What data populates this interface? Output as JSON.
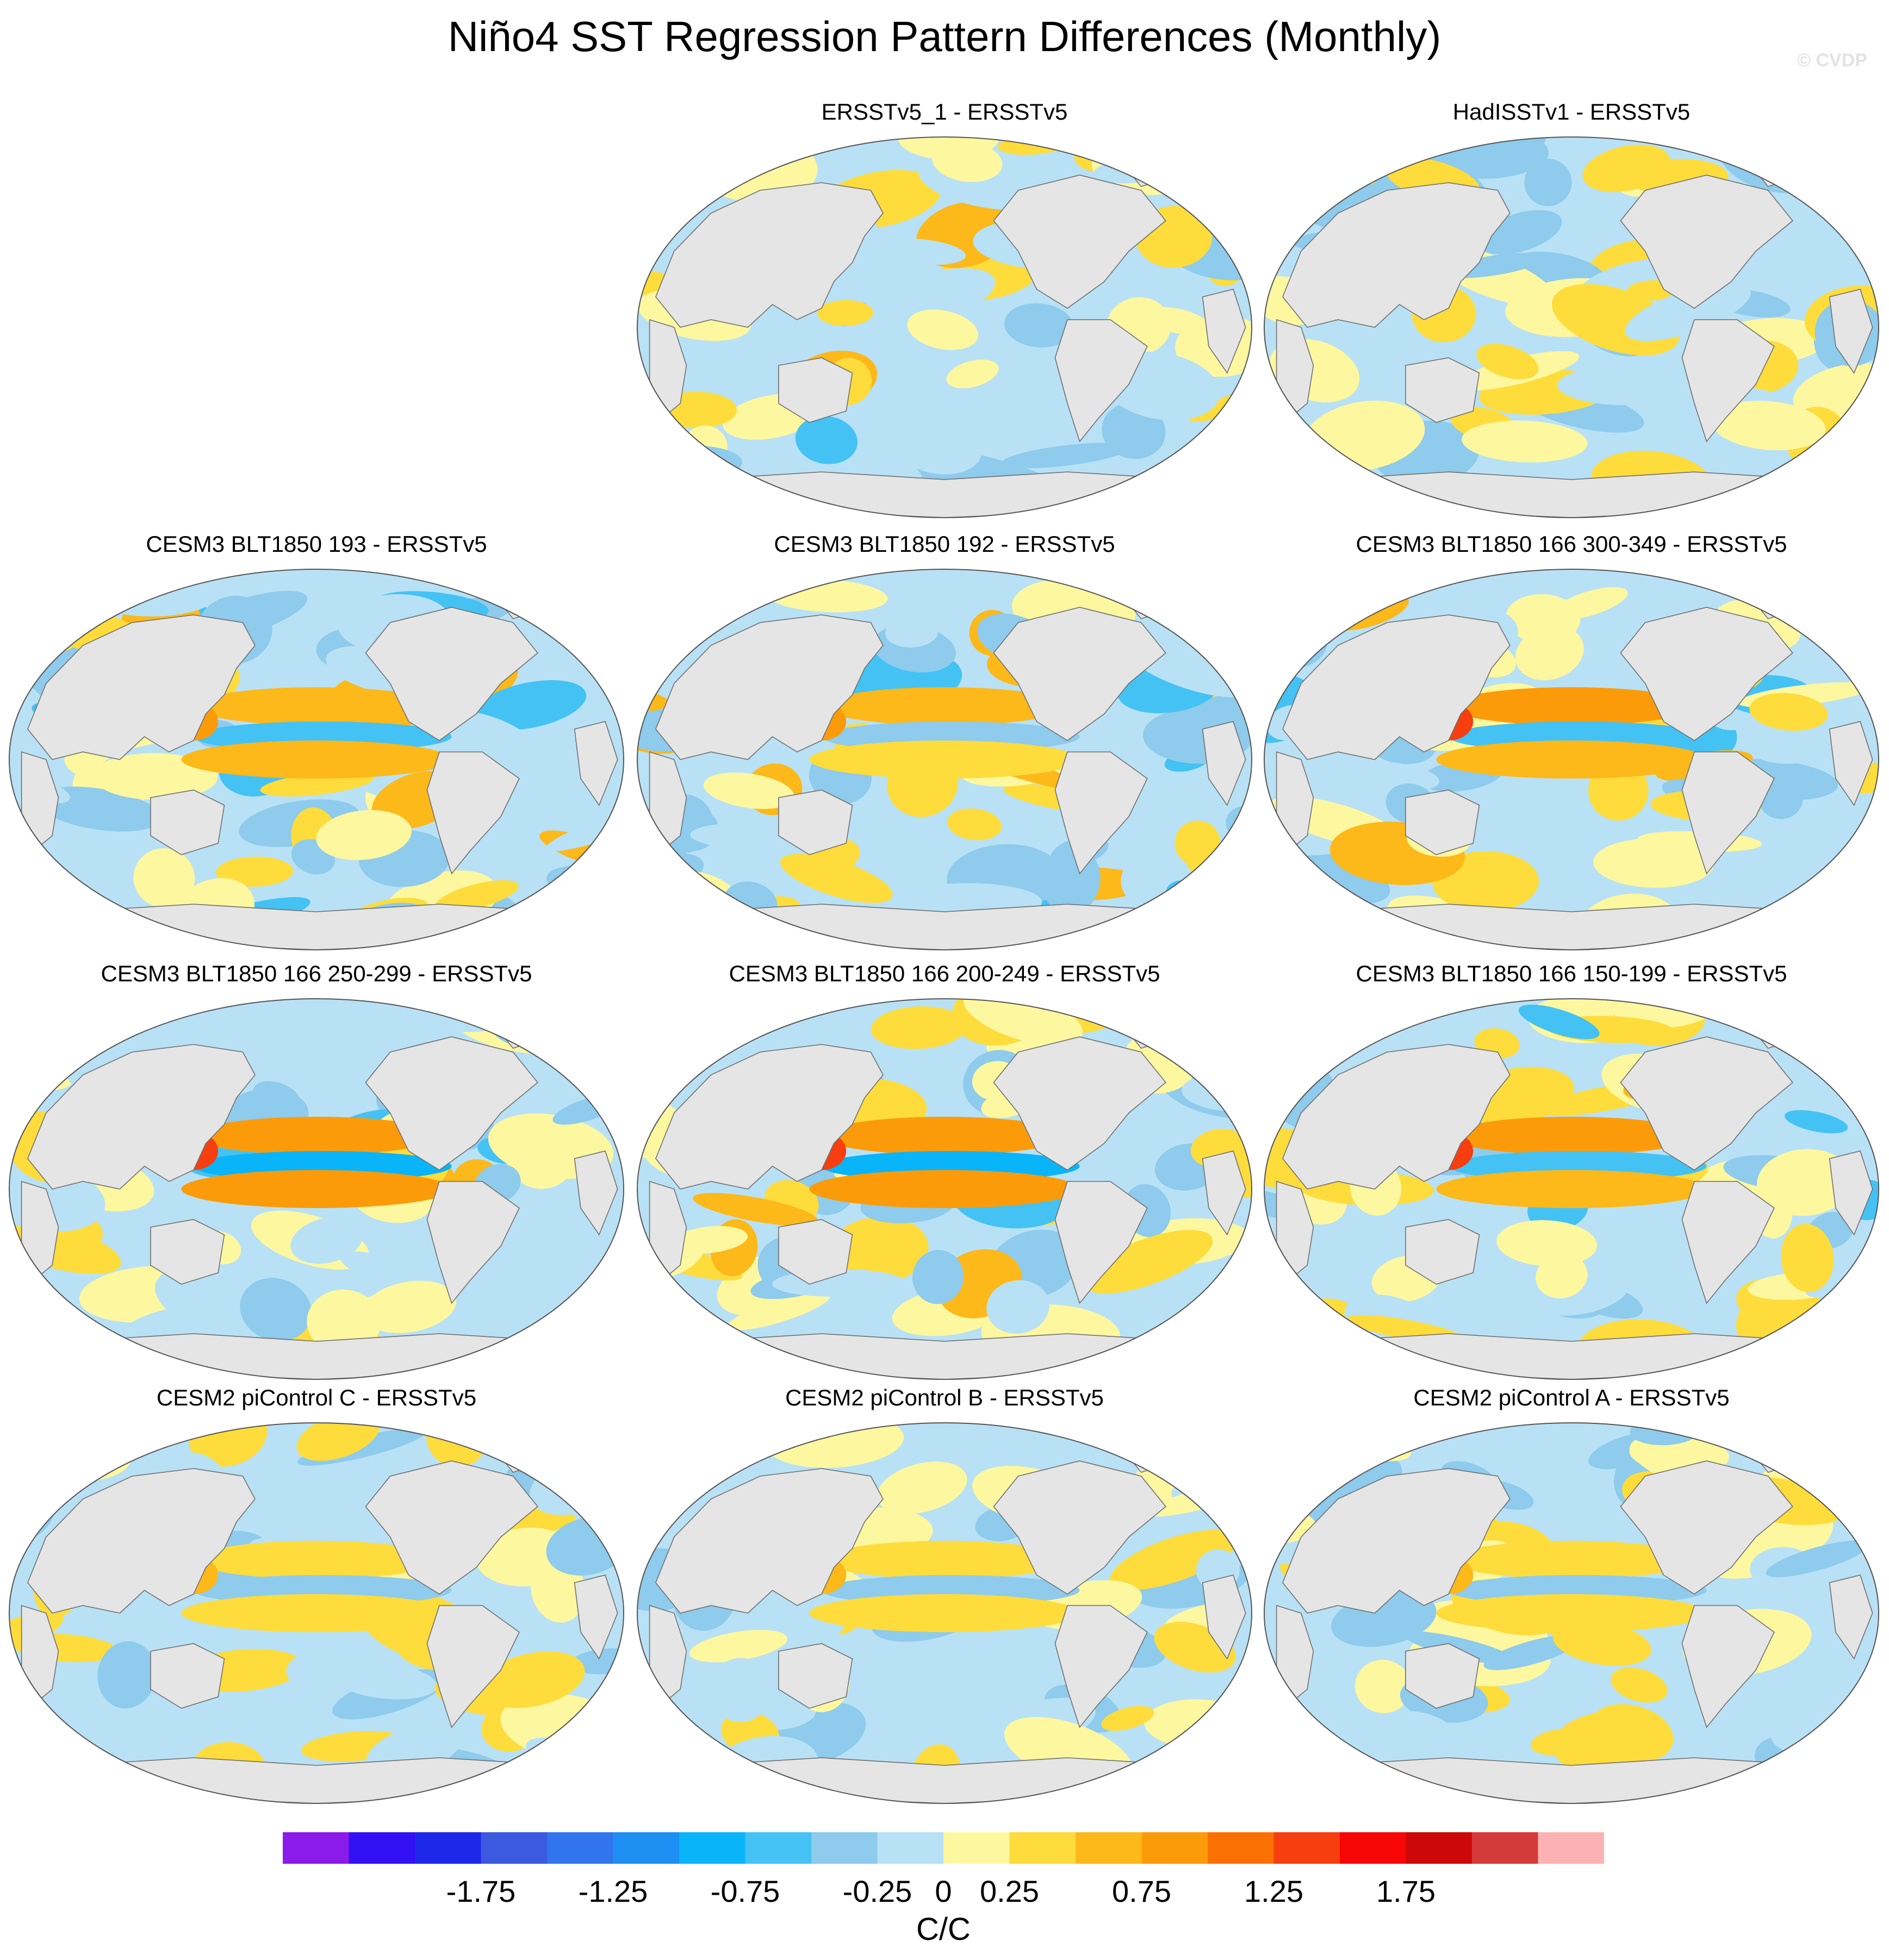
{
  "title": "Niño4 SST Regression Pattern Differences (Monthly)",
  "watermark": "© CVDP",
  "chart_data": {
    "type": "heatmap",
    "projection": "Robinson (global map)",
    "description_units": "C/C",
    "panels": [
      {
        "id": "p1",
        "title": "ERSSTv5_1 - ERSSTv5",
        "signal": 0.0,
        "noise": 0.55,
        "seed": 11
      },
      {
        "id": "p2",
        "title": "HadISSTv1 - ERSSTv5",
        "signal": -0.1,
        "noise": 0.5,
        "seed": 23
      },
      {
        "id": "p3",
        "title": "CESM3 BLT1850 193 - ERSSTv5",
        "signal": 0.9,
        "noise": 0.6,
        "seed": 37
      },
      {
        "id": "p4",
        "title": "CESM3 BLT1850 192 - ERSSTv5",
        "signal": 0.8,
        "noise": 0.6,
        "seed": 41
      },
      {
        "id": "p5",
        "title": "CESM3 BLT1850 166 300-349 - ERSSTv5",
        "signal": 1.2,
        "noise": 0.6,
        "seed": 53
      },
      {
        "id": "p6",
        "title": "CESM3 BLT1850 166 250-299 - ERSSTv5",
        "signal": 1.3,
        "noise": 0.6,
        "seed": 67
      },
      {
        "id": "p7",
        "title": "CESM3 BLT1850 166 200-249 - ERSSTv5",
        "signal": 1.3,
        "noise": 0.6,
        "seed": 71
      },
      {
        "id": "p8",
        "title": "CESM3 BLT1850 166 150-199 - ERSSTv5",
        "signal": 1.2,
        "noise": 0.6,
        "seed": 83
      },
      {
        "id": "p9",
        "title": "CESM2 piControl C - ERSSTv5",
        "signal": 0.6,
        "noise": 0.5,
        "seed": 97
      },
      {
        "id": "p10",
        "title": "CESM2 piControl B - ERSSTv5",
        "signal": 0.6,
        "noise": 0.5,
        "seed": 101
      },
      {
        "id": "p11",
        "title": "CESM2 piControl A - ERSSTv5",
        "signal": 0.6,
        "noise": 0.5,
        "seed": 113
      }
    ],
    "colorbar": {
      "label": "C/C",
      "levels": [
        -2.0,
        -1.75,
        -1.5,
        -1.25,
        -1.0,
        -0.75,
        -0.5,
        -0.25,
        0,
        0.25,
        0.5,
        0.75,
        1.0,
        1.25,
        1.5,
        1.75,
        2.0
      ],
      "tick_labels": [
        "-1.75",
        "-1.25",
        "-0.75",
        "-0.25",
        "0",
        "0.25",
        "0.75",
        "1.25",
        "1.75"
      ],
      "tick_values": [
        -1.75,
        -1.25,
        -0.75,
        -0.25,
        0,
        0.25,
        0.75,
        1.25,
        1.75
      ],
      "colors": [
        "#8a1be8",
        "#3410f5",
        "#1e28e8",
        "#3c5ae0",
        "#3274ec",
        "#1e8ff2",
        "#0ab4f8",
        "#44c2f4",
        "#8ecbec",
        "#b9e1f5",
        "#fdf7a0",
        "#fddc3c",
        "#fdb819",
        "#fc9b0a",
        "#fb7003",
        "#f73e0e",
        "#f70606",
        "#cc0808",
        "#d43a3a",
        "#fcb2b2"
      ]
    },
    "land_color": "#e5e5e5",
    "coast_color": "#6f6f6f"
  }
}
